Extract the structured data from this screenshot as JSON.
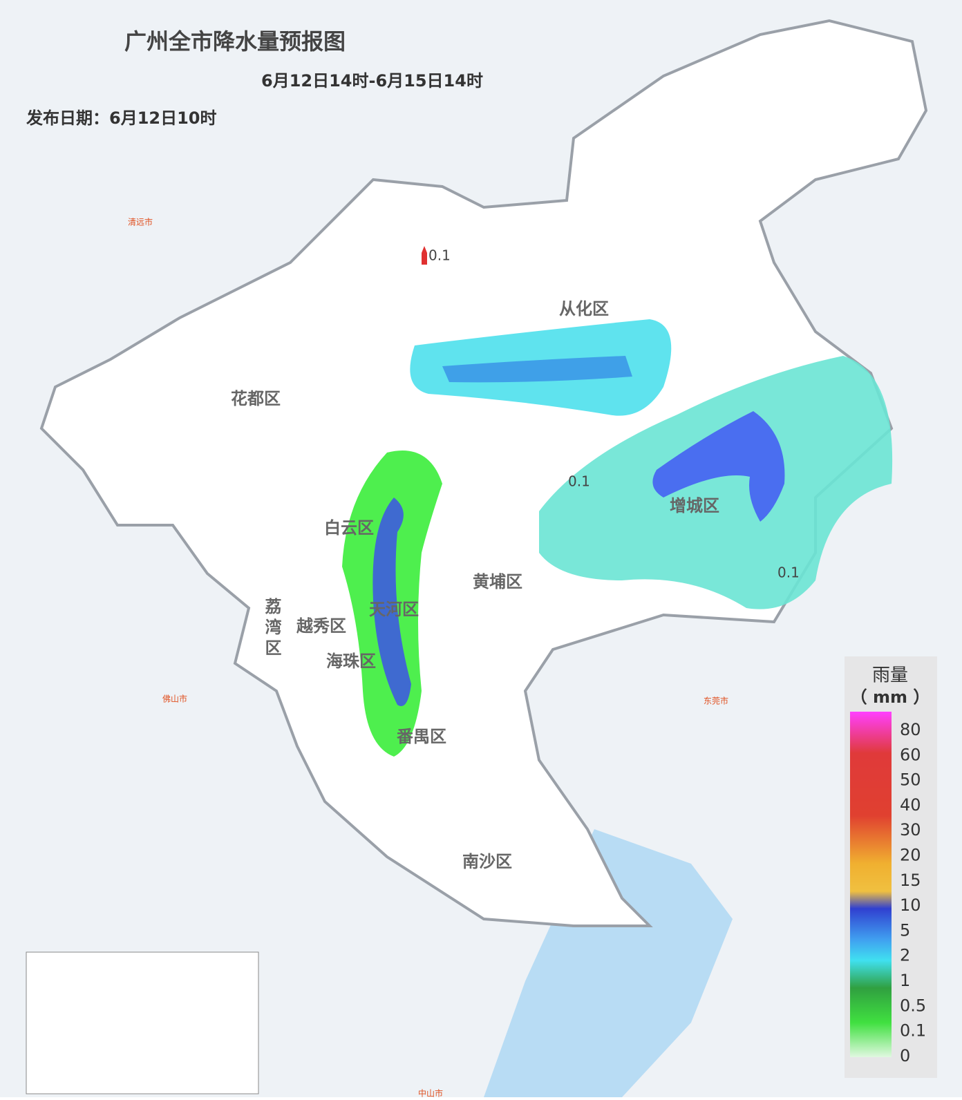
{
  "header": {
    "title": "广州全市降水量预报图",
    "period": "6月12日14时-6月15日14时",
    "issued": "发布日期：6月12日10时"
  },
  "districts": [
    "从化区",
    "花都区",
    "白云区",
    "黄埔区",
    "增城区",
    "天河区",
    "越秀区",
    "荔湾区",
    "海珠区",
    "番禺区",
    "南沙区"
  ],
  "contour_labels": [
    "0.1",
    "0.1",
    "0.1"
  ],
  "cities": [
    "清远市",
    "佛山市",
    "东莞市",
    "中山市"
  ],
  "legend": {
    "title": "雨量",
    "unit": "（ mm ）",
    "ticks": [
      "80",
      "60",
      "50",
      "40",
      "30",
      "20",
      "15",
      "10",
      "5",
      "2",
      "1",
      "0.5",
      "0.1",
      "0"
    ]
  }
}
